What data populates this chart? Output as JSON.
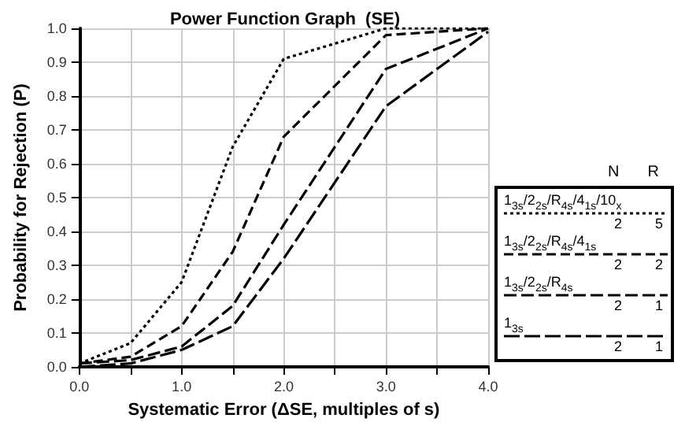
{
  "chart_data": {
    "type": "line",
    "title": "Power Function Graph  (SE)",
    "xlabel": "Systematic Error (ΔSE, multiples of s)",
    "ylabel": "Probability for Rejection (P)",
    "x": [
      0,
      0.5,
      1,
      1.5,
      2,
      3,
      4
    ],
    "series": [
      {
        "name": "1$_{3s}$/2$_{2s}$/R$_{4s}$/4$_{1s}$/10$_{x}$",
        "color": "#000000",
        "line_style": "dotted",
        "values": [
          0.01,
          0.07,
          0.25,
          0.65,
          0.91,
          1.0,
          1.0
        ]
      },
      {
        "name": "1$_{3s}$/2$_{2s}$/R$_{4s}$/4$_{1s}$",
        "color": "#000000",
        "line_style": "dashed",
        "values": [
          0.01,
          0.03,
          0.12,
          0.34,
          0.68,
          0.98,
          1.0
        ]
      },
      {
        "name": "1$_{3s}$/2$_{2s}$/R$_{4s}$",
        "color": "#000000",
        "line_style": "dashed",
        "values": [
          0.01,
          0.02,
          0.06,
          0.18,
          0.42,
          0.88,
          1.0
        ]
      },
      {
        "name": "1$_{3s}$",
        "color": "#000000",
        "line_style": "dashed",
        "values": [
          0.0,
          0.01,
          0.05,
          0.12,
          0.32,
          0.77,
          0.99
        ]
      }
    ],
    "xlim": [
      0,
      4
    ],
    "xticks": [
      {
        "value": 0,
        "label": "0.0"
      },
      {
        "value": 0.5,
        "label": null
      },
      {
        "value": 1,
        "label": "1.0"
      },
      {
        "value": 1.5,
        "label": null
      },
      {
        "value": 2,
        "label": "2.0"
      },
      {
        "value": 2.5,
        "label": null
      },
      {
        "value": 3,
        "label": "3.0"
      },
      {
        "value": 3.5,
        "label": null
      },
      {
        "value": 4,
        "label": "4.0"
      }
    ],
    "ylim": [
      0,
      1
    ],
    "yticks": [
      {
        "value": 0,
        "label": "0.0"
      },
      {
        "value": 0.1,
        "label": "0.1"
      },
      {
        "value": 0.2,
        "label": "0.2"
      },
      {
        "value": 0.3,
        "label": "0.3"
      },
      {
        "value": 0.4,
        "label": "0.4"
      },
      {
        "value": 0.5,
        "label": "0.5"
      },
      {
        "value": 0.6,
        "label": "0.6"
      },
      {
        "value": 0.7,
        "label": "0.7"
      },
      {
        "value": 0.8,
        "label": "0.8"
      },
      {
        "value": 0.9,
        "label": "0.9"
      },
      {
        "value": 1,
        "label": "1.0"
      }
    ],
    "grid": true,
    "legend": "right",
    "marker": "none",
    "annotations": [
      "N",
      "R",
      "2",
      "5",
      "2",
      "2",
      "2",
      "1",
      "2",
      "1"
    ]
  }
}
